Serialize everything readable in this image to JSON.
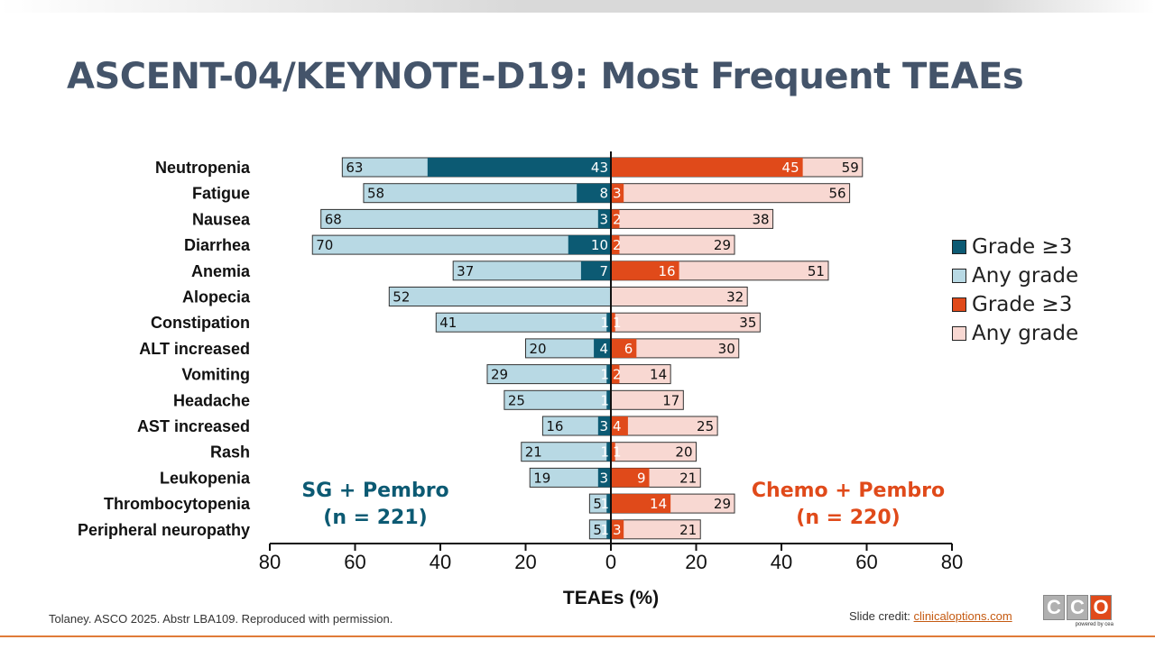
{
  "title": "ASCENT-04/KEYNOTE-D19: Most Frequent TEAEs",
  "chart_data": {
    "type": "bar",
    "orientation": "horizontal-butterfly",
    "categories": [
      "Neutropenia",
      "Fatigue",
      "Nausea",
      "Diarrhea",
      "Anemia",
      "Alopecia",
      "Constipation",
      "ALT increased",
      "Vomiting",
      "Headache",
      "AST increased",
      "Rash",
      "Leukopenia",
      "Thrombocytopenia",
      "Peripheral neuropathy"
    ],
    "series": [
      {
        "name": "Any grade",
        "group": "SG + Pembro",
        "side": "left",
        "color": "#b8d9e4",
        "values": [
          63,
          58,
          68,
          70,
          37,
          52,
          41,
          20,
          29,
          25,
          16,
          21,
          19,
          5,
          5
        ],
        "labels": [
          "63",
          "58",
          "68",
          "70",
          "37",
          "52",
          "41",
          "20",
          "29",
          "25",
          "16",
          "21",
          "19",
          "5",
          "5"
        ]
      },
      {
        "name": "Grade ≥3",
        "group": "SG + Pembro",
        "side": "left",
        "color": "#0c5a73",
        "values": [
          43,
          8,
          3,
          10,
          7,
          0,
          1,
          4,
          1,
          1,
          3,
          1,
          3,
          1,
          1
        ],
        "labels": [
          "43",
          "8",
          "3",
          "10",
          "7",
          "",
          "1",
          "4",
          "1",
          "1",
          "3",
          "1",
          "3",
          "1",
          "1"
        ]
      },
      {
        "name": "Any grade",
        "group": "Chemo + Pembro",
        "side": "right",
        "color": "#f8d8d2",
        "values": [
          59,
          56,
          38,
          29,
          51,
          32,
          35,
          30,
          14,
          17,
          25,
          20,
          21,
          29,
          21
        ],
        "labels": [
          "59",
          "56",
          "38",
          "29",
          "51",
          "32",
          "35",
          "30",
          "14",
          "17",
          "25",
          "20",
          "21",
          "29",
          "21"
        ]
      },
      {
        "name": "Grade ≥3",
        "group": "Chemo + Pembro",
        "side": "right",
        "color": "#e04a1a",
        "values": [
          45,
          3,
          2,
          2,
          16,
          0,
          1,
          6,
          2,
          0,
          4,
          1,
          9,
          14,
          3
        ],
        "labels": [
          "45",
          "3",
          "2",
          "2",
          "16",
          "",
          "1",
          "6",
          "2",
          "",
          "4",
          "1",
          "9",
          "14",
          "3"
        ]
      }
    ],
    "xlabel": "TEAEs (%)",
    "xlim": [
      -80,
      80
    ],
    "xticks": [
      "80",
      "60",
      "40",
      "20",
      "0",
      "20",
      "40",
      "60",
      "80"
    ],
    "legend_position": "right",
    "grid": false
  },
  "legend": [
    {
      "label": "Grade ≥3",
      "color": "#0c5a73"
    },
    {
      "label": "Any grade",
      "color": "#b8d9e4"
    },
    {
      "label": "Grade ≥3",
      "color": "#e04a1a"
    },
    {
      "label": "Any grade",
      "color": "#f8d8d2"
    }
  ],
  "groups": {
    "left": {
      "line1": "SG + Pembro",
      "line2": "(n = 221)",
      "color": "#0c5a73"
    },
    "right": {
      "line1": "Chemo + Pembro",
      "line2": "(n = 220)",
      "color": "#e04a1a"
    }
  },
  "footer": {
    "citation": "Tolaney. ASCO 2025. Abstr LBA109. Reproduced with permission.",
    "credit_prefix": "Slide credit: ",
    "credit_link": "clinicaloptions.com"
  },
  "logo": {
    "letters": [
      "C",
      "C",
      "O"
    ],
    "sub": "powered by cea"
  }
}
